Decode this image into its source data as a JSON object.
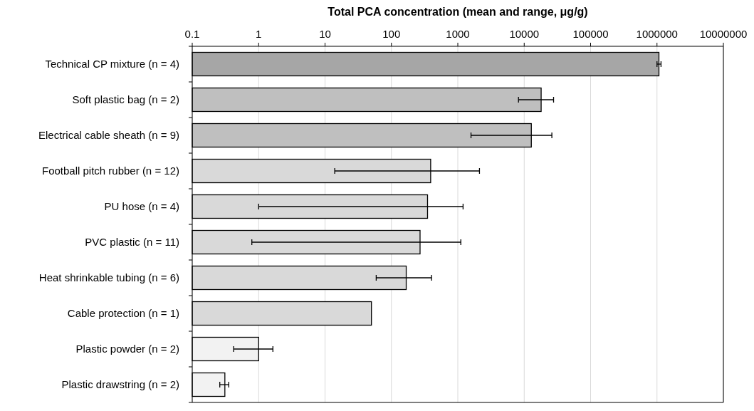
{
  "chart_data": {
    "type": "bar",
    "orientation": "horizontal",
    "log": "x",
    "xlabel": "Total PCA concentration (mean and range, μg/g)",
    "categories": [
      "Technical CP mixture (n = 4)",
      "Soft plastic bag (n = 2)",
      "Electrical cable sheath (n = 9)",
      "Football pitch rubber (n = 12)",
      "PU hose (n = 4)",
      "PVC plastic (n = 11)",
      "Heat shrinkable tubing (n = 6)",
      "Cable protection (n = 1)",
      "Plastic powder (n = 2)",
      "Plastic drawstring (n = 2)"
    ],
    "values": [
      1070000,
      18000,
      12800,
      390,
      350,
      270,
      167,
      50,
      1.0,
      0.31
    ],
    "errors": [
      [
        1000000,
        1150000
      ],
      [
        8200,
        27700
      ],
      [
        1580,
        26100
      ],
      [
        14,
        2120
      ],
      [
        1.0,
        1200
      ],
      [
        0.79,
        1110
      ],
      [
        59,
        402
      ],
      null,
      [
        0.42,
        1.64
      ],
      [
        0.26,
        0.355
      ]
    ],
    "colors": [
      "#a6a6a6",
      "#bfbfbf",
      "#bfbfbf",
      "#d9d9d9",
      "#d9d9d9",
      "#d9d9d9",
      "#d9d9d9",
      "#d9d9d9",
      "#f2f2f2",
      "#f2f2f2"
    ],
    "xlim": [
      0.1,
      10000000
    ],
    "xticks": [
      {
        "value": 0.1,
        "label": "0.1"
      },
      1,
      10,
      100,
      1000,
      10000,
      100000,
      1000000,
      10000000
    ],
    "grid": "x"
  }
}
